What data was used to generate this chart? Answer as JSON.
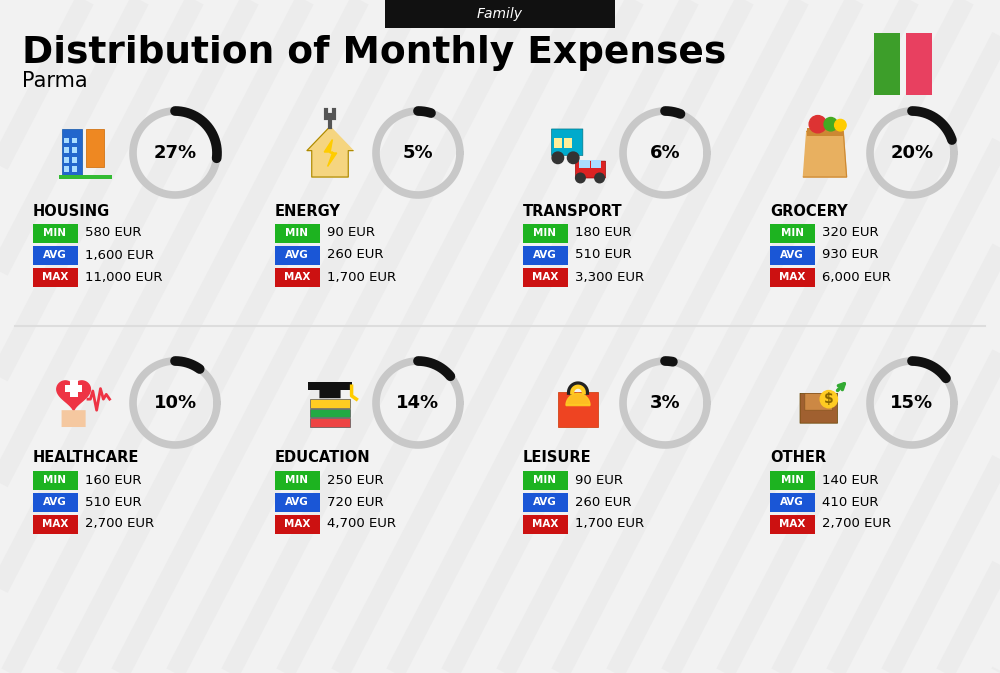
{
  "title": "Distribution of Monthly Expenses",
  "subtitle": "Family",
  "city": "Parma",
  "bg_color": "#f2f2f2",
  "categories": [
    {
      "name": "HOUSING",
      "pct": 27,
      "min": "580 EUR",
      "avg": "1,600 EUR",
      "max": "11,000 EUR",
      "row": 0,
      "col": 0
    },
    {
      "name": "ENERGY",
      "pct": 5,
      "min": "90 EUR",
      "avg": "260 EUR",
      "max": "1,700 EUR",
      "row": 0,
      "col": 1
    },
    {
      "name": "TRANSPORT",
      "pct": 6,
      "min": "180 EUR",
      "avg": "510 EUR",
      "max": "3,300 EUR",
      "row": 0,
      "col": 2
    },
    {
      "name": "GROCERY",
      "pct": 20,
      "min": "320 EUR",
      "avg": "930 EUR",
      "max": "6,000 EUR",
      "row": 0,
      "col": 3
    },
    {
      "name": "HEALTHCARE",
      "pct": 10,
      "min": "160 EUR",
      "avg": "510 EUR",
      "max": "2,700 EUR",
      "row": 1,
      "col": 0
    },
    {
      "name": "EDUCATION",
      "pct": 14,
      "min": "250 EUR",
      "avg": "720 EUR",
      "max": "4,700 EUR",
      "row": 1,
      "col": 1
    },
    {
      "name": "LEISURE",
      "pct": 3,
      "min": "90 EUR",
      "avg": "260 EUR",
      "max": "1,700 EUR",
      "row": 1,
      "col": 2
    },
    {
      "name": "OTHER",
      "pct": 15,
      "min": "140 EUR",
      "avg": "410 EUR",
      "max": "2,700 EUR",
      "row": 1,
      "col": 3
    }
  ],
  "min_color": "#1db320",
  "avg_color": "#1a56d6",
  "max_color": "#cc1111",
  "italy_green": "#3d9e2a",
  "italy_red": "#e84060",
  "arc_bg_color": "#c8c8c8",
  "arc_fg_color": "#111111",
  "diag_color": "#e8e8e8",
  "sep_color": "#dddddd"
}
